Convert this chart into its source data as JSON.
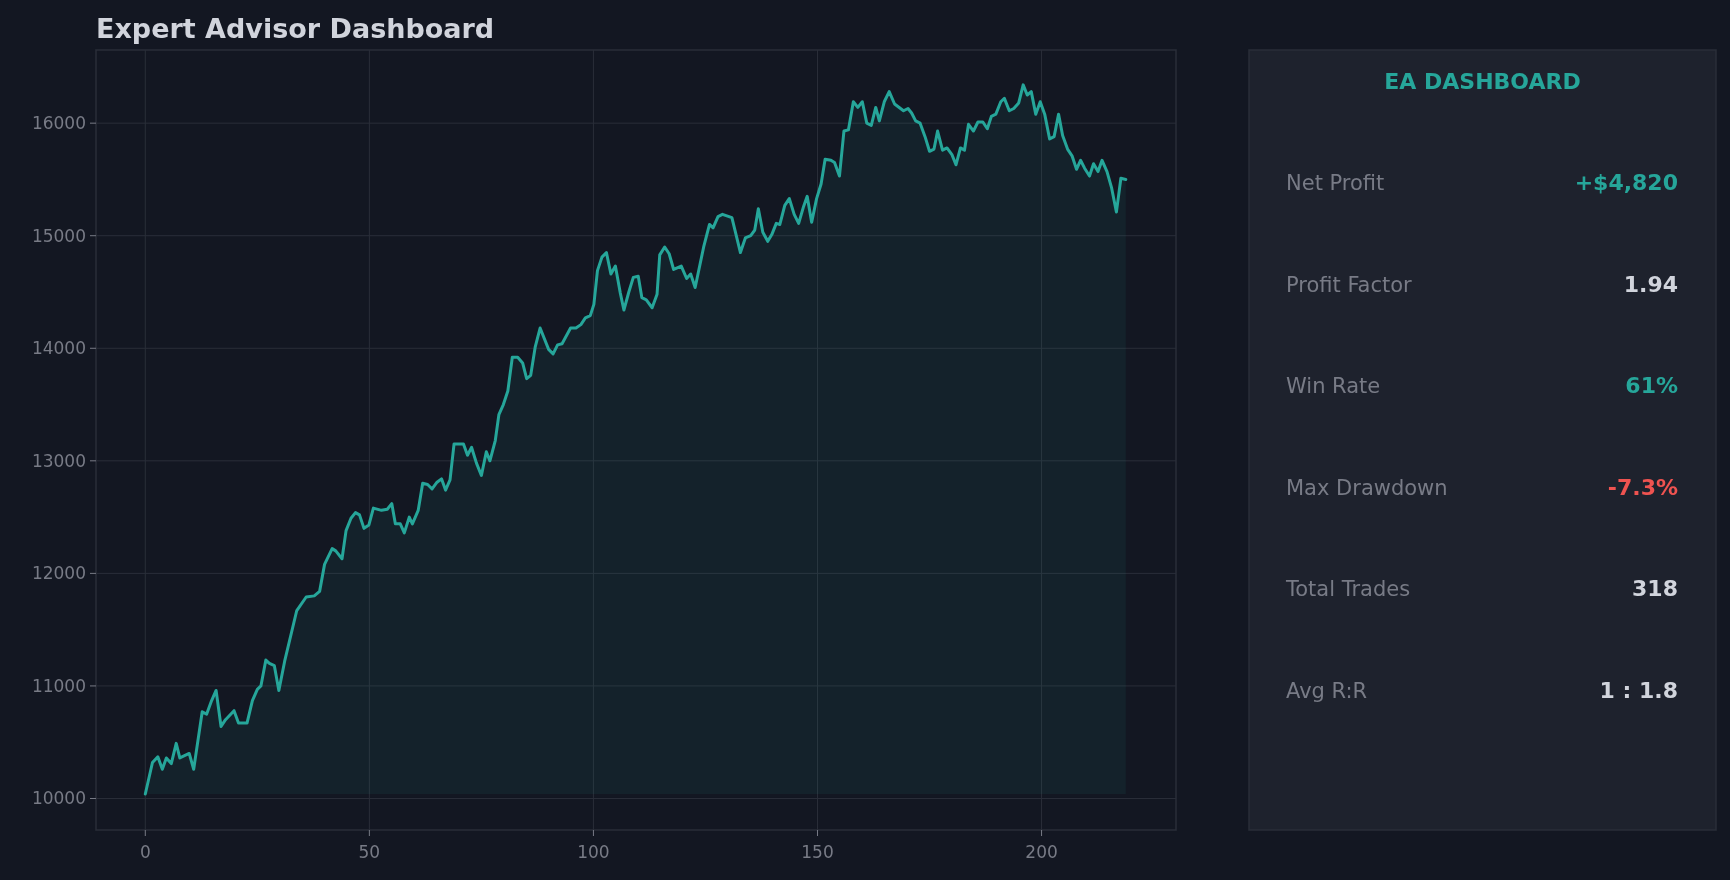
{
  "chart_data": [
    {
      "type": "area",
      "title": "Expert Advisor Dashboard",
      "color": "#26a69a",
      "xlim": [
        -11,
        230
      ],
      "ylim": [
        9720,
        16650
      ],
      "xticks": [
        0,
        50,
        100,
        150,
        200
      ],
      "yticks": [
        10000,
        11000,
        12000,
        13000,
        14000,
        15000,
        16000
      ],
      "grid": true,
      "x": [
        0,
        1.6,
        2.8,
        3.8,
        4.7,
        5.8,
        6.9,
        7.7,
        9.8,
        10.8,
        12.7,
        13.7,
        14.8,
        15.8,
        16.9,
        17.9,
        19.8,
        20.8,
        22.7,
        23.9,
        25,
        25.8,
        26.9,
        27.7,
        28.8,
        29.8,
        31.1,
        33.8,
        35.9,
        37.7,
        38.9,
        40,
        41.7,
        42.5,
        43.9,
        44.8,
        45.9,
        46.9,
        47.8,
        48.8,
        49.9,
        50.9,
        52.7,
        54,
        55,
        55.8,
        56.9,
        57.8,
        58.9,
        59.6,
        60.9,
        61.9,
        63,
        64,
        65.1,
        66.1,
        67,
        68,
        68.9,
        71,
        71.9,
        72.8,
        73.9,
        75,
        76.1,
        76.9,
        78.1,
        78.9,
        79.9,
        80.9,
        81.9,
        83.1,
        84.2,
        85.1,
        86,
        87,
        88.1,
        90,
        91,
        92,
        93,
        94.9,
        96.1,
        97.2,
        98.2,
        99.3,
        100.1,
        100.9,
        101.9,
        102.9,
        103.9,
        104.9,
        106,
        106.8,
        107.9,
        108.9,
        110,
        110.8,
        111.8,
        113.1,
        114.2,
        114.8,
        115.9,
        116.9,
        117.9,
        119.6,
        120.8,
        121.7,
        122.7,
        124.6,
        125.9,
        126.7,
        127.8,
        128.8,
        130.9,
        132.8,
        133.9,
        135.1,
        136,
        136.8,
        137.8,
        138.9,
        139.8,
        140.8,
        141.6,
        142.7,
        143.7,
        144.8,
        145.8,
        146.9,
        147.7,
        148.7,
        149.8,
        150.8,
        151.7,
        153,
        153.8,
        154.9,
        155.9,
        156.9,
        158,
        159,
        160,
        161,
        162,
        163,
        163.8,
        164.9,
        166,
        167.2,
        169.2,
        170.2,
        171,
        171.9,
        172.9,
        174,
        175,
        176,
        176.8,
        177.9,
        178.9,
        180,
        180.9,
        181.9,
        182.8,
        183.7,
        184.8,
        185.8,
        186.9,
        187.9,
        188.8,
        189.8,
        190.9,
        191.7,
        192.8,
        193.8,
        194.9,
        195.9,
        196.8,
        197.7,
        198.7,
        199.7,
        200.7,
        201.8,
        202.8,
        203.8,
        204.7,
        205.8,
        206.8,
        207.8,
        208.7,
        209.6,
        210.7,
        211.6,
        212.6,
        213.5,
        214.6,
        215.6,
        216.7,
        217.7,
        218.8
      ],
      "values": [
        10040,
        10320,
        10370,
        10260,
        10360,
        10310,
        10490,
        10360,
        10400,
        10260,
        10770,
        10750,
        10870,
        10960,
        10640,
        10700,
        10780,
        10670,
        10670,
        10870,
        10970,
        11000,
        11230,
        11200,
        11180,
        10960,
        11220,
        11670,
        11790,
        11800,
        11840,
        12080,
        12220,
        12200,
        12130,
        12380,
        12490,
        12540,
        12520,
        12400,
        12430,
        12580,
        12560,
        12570,
        12620,
        12440,
        12440,
        12360,
        12500,
        12440,
        12560,
        12800,
        12790,
        12750,
        12810,
        12840,
        12740,
        12830,
        13150,
        13150,
        13050,
        13120,
        12980,
        12870,
        13080,
        13000,
        13180,
        13410,
        13500,
        13620,
        13920,
        13920,
        13870,
        13730,
        13760,
        14010,
        14180,
        13990,
        13950,
        14030,
        14040,
        14180,
        14180,
        14210,
        14270,
        14290,
        14390,
        14690,
        14810,
        14850,
        14660,
        14730,
        14490,
        14340,
        14500,
        14630,
        14640,
        14450,
        14430,
        14360,
        14480,
        14830,
        14900,
        14840,
        14700,
        14730,
        14620,
        14660,
        14540,
        14900,
        15100,
        15070,
        15170,
        15190,
        15160,
        14850,
        14980,
        15000,
        15050,
        15240,
        15030,
        14950,
        15010,
        15110,
        15100,
        15270,
        15330,
        15190,
        15110,
        15260,
        15350,
        15120,
        15330,
        15460,
        15680,
        15670,
        15650,
        15530,
        15930,
        15940,
        16190,
        16140,
        16190,
        16000,
        15980,
        16140,
        16020,
        16190,
        16280,
        16170,
        16110,
        16130,
        16090,
        16020,
        16000,
        15880,
        15750,
        15770,
        15930,
        15760,
        15780,
        15720,
        15630,
        15780,
        15760,
        15990,
        15930,
        16010,
        16010,
        15950,
        16060,
        16080,
        16190,
        16220,
        16110,
        16130,
        16180,
        16340,
        16250,
        16280,
        16080,
        16190,
        16080,
        15860,
        15880,
        16080,
        15890,
        15770,
        15710,
        15590,
        15670,
        15600,
        15530,
        15640,
        15570,
        15670,
        15570,
        15430,
        15210,
        15510,
        15500
      ]
    },
    {
      "type": "other",
      "title": "EA DASHBOARD",
      "annotations": [
        "Net Profit",
        "+$4,820",
        "Profit Factor",
        "1.94",
        "Win Rate",
        "61%",
        "Max Drawdown",
        "-7.3%",
        "Total Trades",
        "318",
        "Avg R:R",
        "1 : 1.8"
      ],
      "colors": [
        "#787b86",
        "#26a69a",
        "#787b86",
        "#d1d4dc",
        "#787b86",
        "#26a69a",
        "#787b86",
        "#ef5350",
        "#787b86",
        "#d1d4dc",
        "#787b86",
        "#d1d4dc"
      ]
    }
  ]
}
